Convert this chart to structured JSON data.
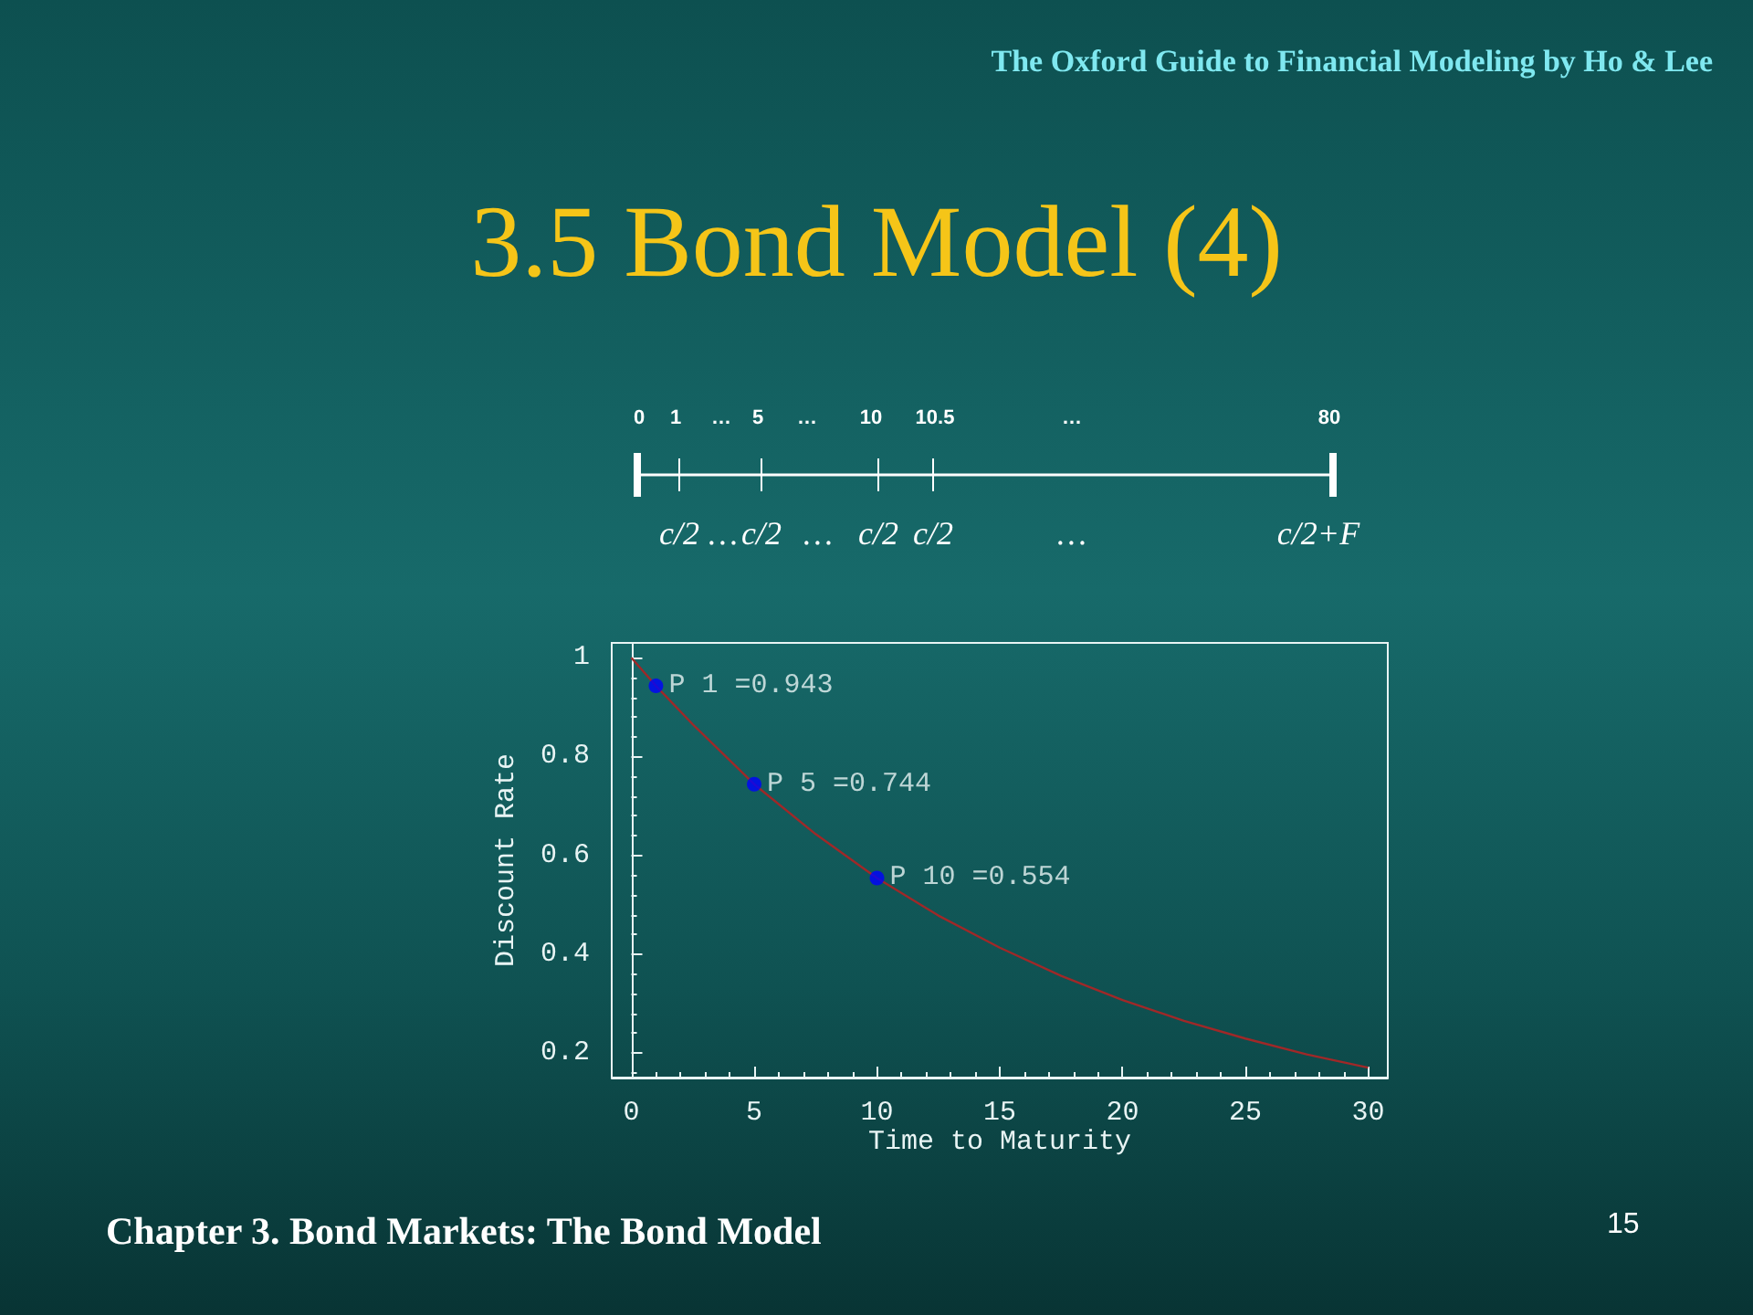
{
  "chart_data": {
    "type": "line",
    "title": "3.5 Bond Model (4)",
    "xlabel": "Time to Maturity",
    "ylabel": "Discount Rate",
    "xlim": [
      -0.8,
      30.8
    ],
    "xticks": [
      0,
      5,
      10,
      15,
      20,
      25,
      30
    ],
    "ylim": [
      0.15,
      1.03
    ],
    "yticks": [
      0.2,
      0.4,
      0.6,
      0.8,
      1
    ],
    "marker": "none",
    "line_style": "solid",
    "series": [
      {
        "type": "line",
        "color": "#a02828",
        "x": [
          0,
          1,
          2.5,
          5,
          7.5,
          10,
          12.5,
          15,
          17.5,
          20,
          22.5,
          25,
          27.5,
          30
        ],
        "values": [
          1,
          0.943,
          0.865,
          0.744,
          0.643,
          0.554,
          0.478,
          0.413,
          0.356,
          0.307,
          0.265,
          0.229,
          0.197,
          0.17
        ]
      },
      {
        "type": "scatter",
        "color": "#0000ff",
        "marker": "circle",
        "x": [
          1,
          5,
          10
        ],
        "values": [
          0.943,
          0.744,
          0.554
        ],
        "value_labels": [
          "P 1 =0.943",
          "P 5 =0.744",
          "P 10 =0.554"
        ]
      }
    ],
    "annotations": [
      "The Oxford Guide to Financial Modeling by Ho & Lee",
      "Chapter 3. Bond Markets: The Bond Model",
      "15",
      "0",
      "1",
      "…",
      "5",
      "…",
      "10",
      "10.5",
      "…",
      "80",
      "c/2",
      "…",
      "c/2",
      "…",
      "c/2",
      "c/2",
      "…",
      "c/2+F"
    ]
  }
}
